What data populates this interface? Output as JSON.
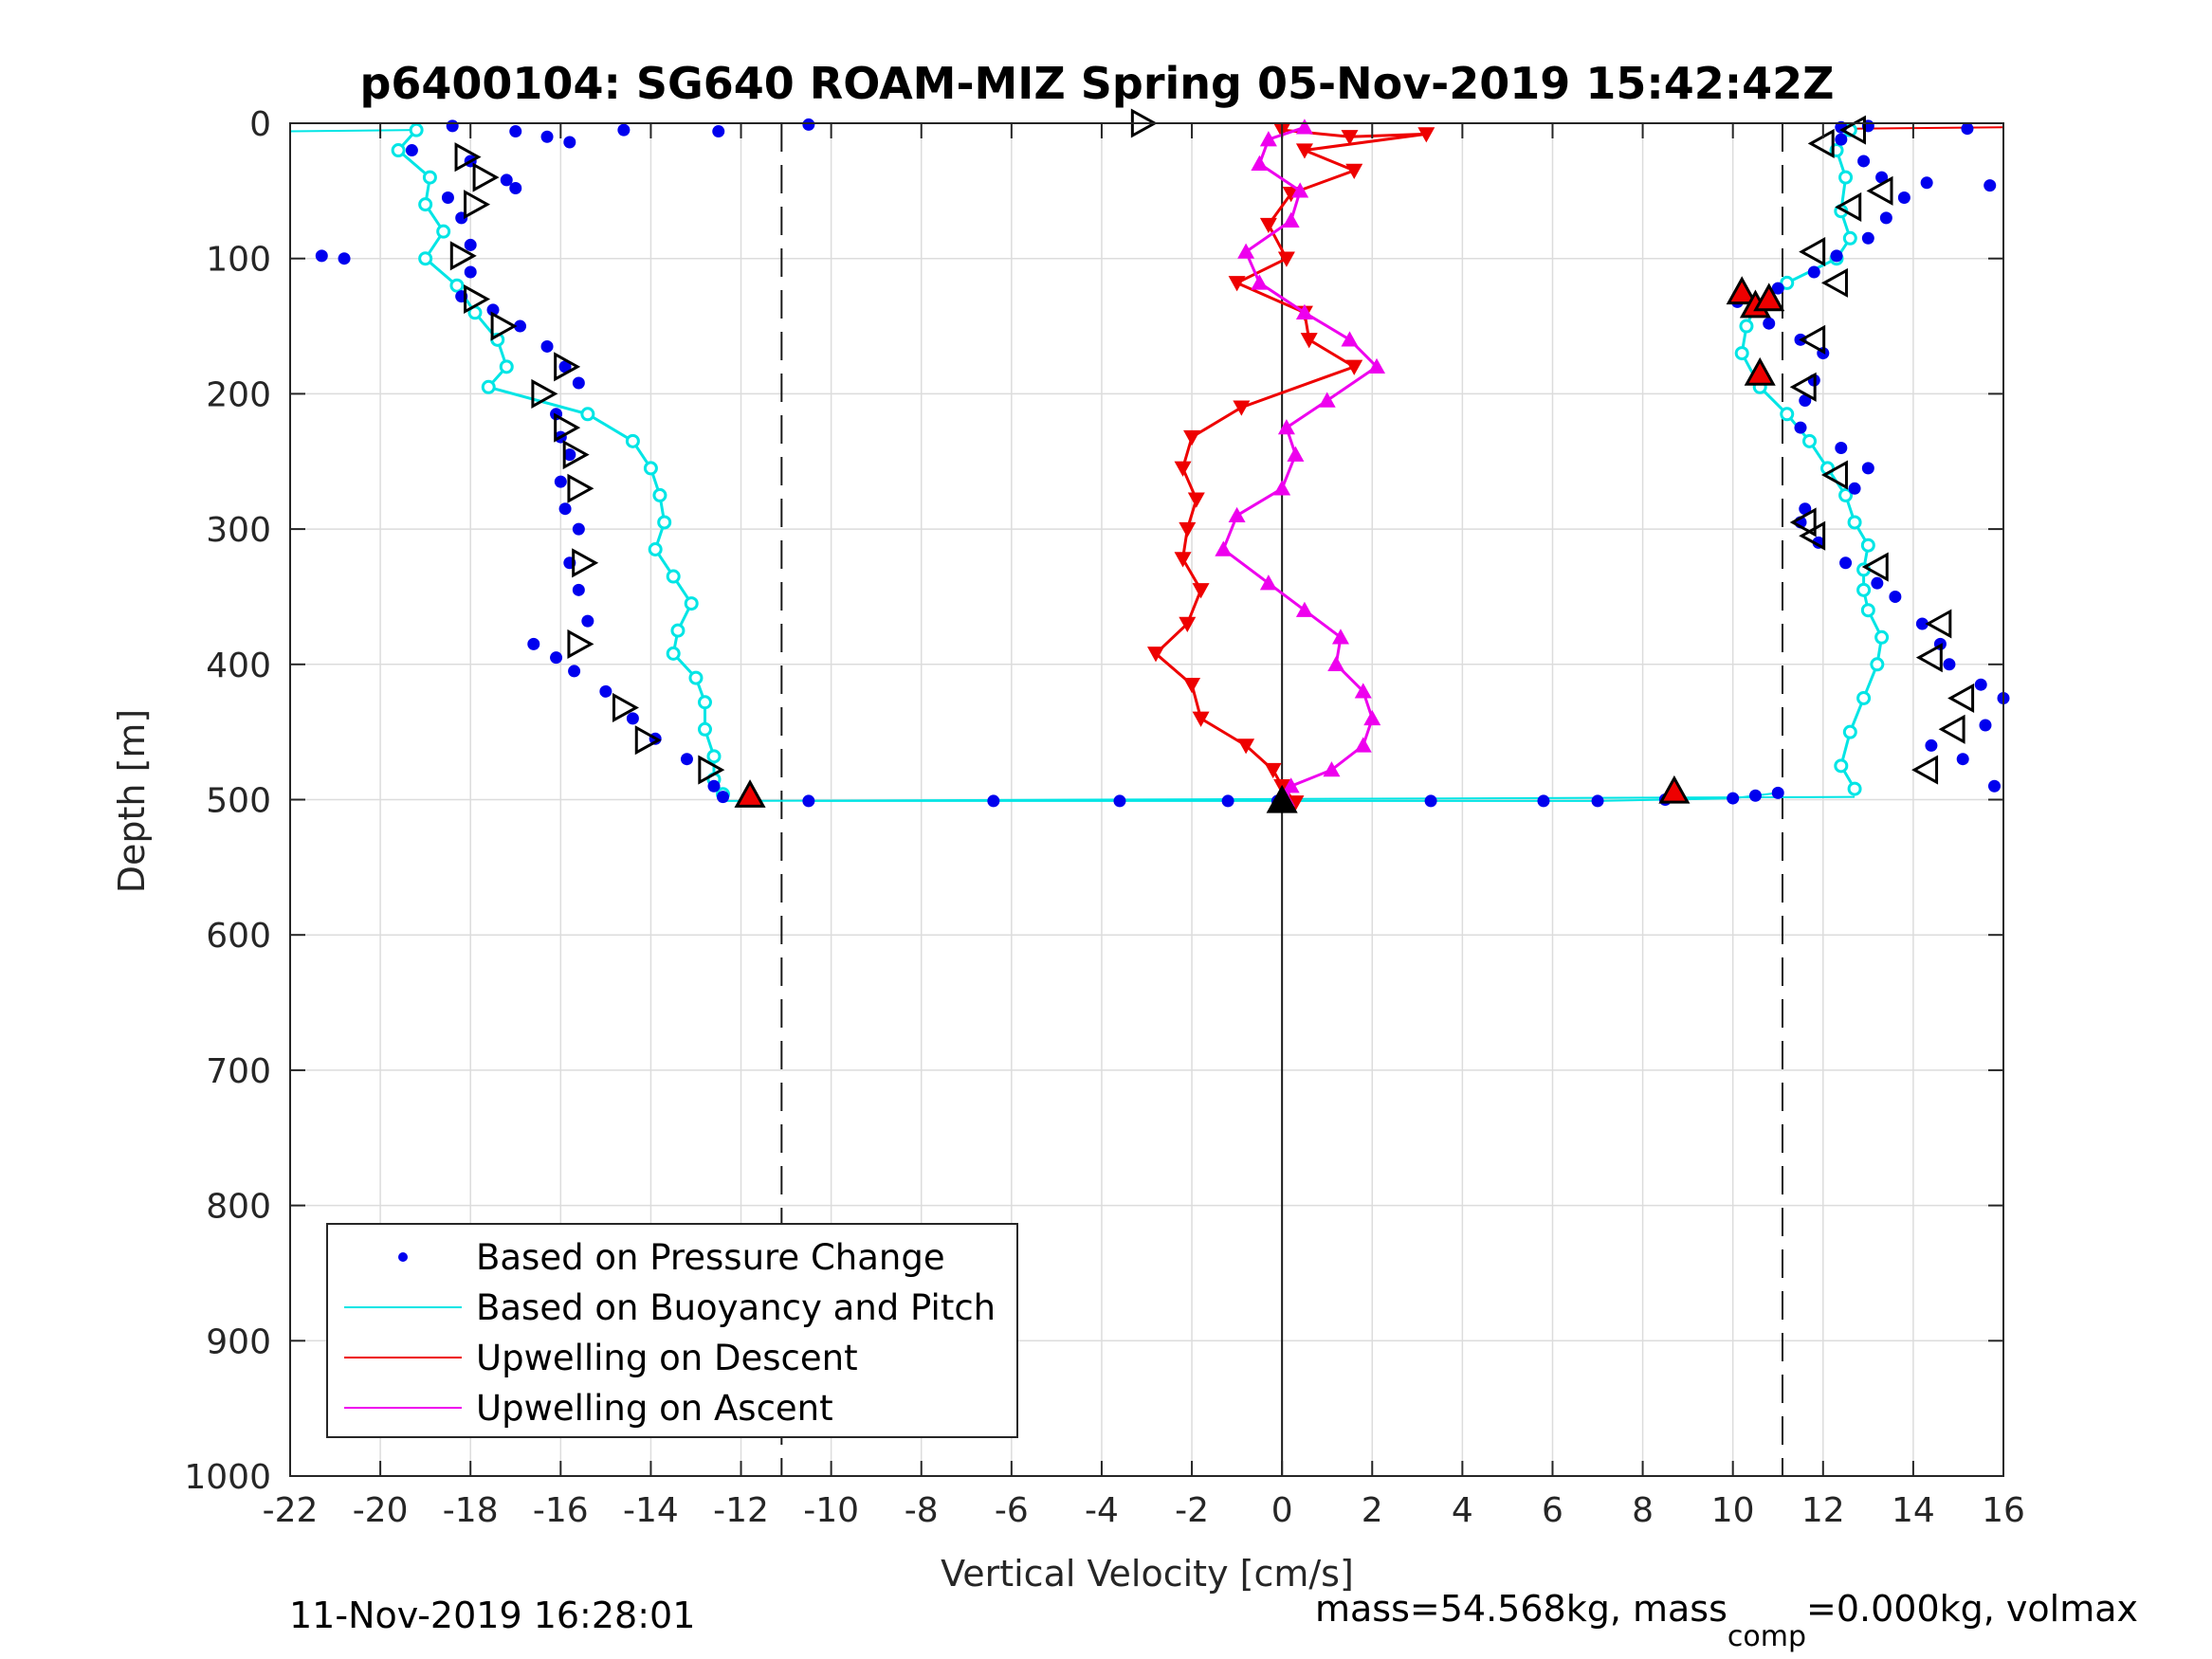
{
  "chart_data": {
    "type": "scatter",
    "title": "p6400104: SG640 ROAM-MIZ Spring 05-Nov-2019 15:42:42Z",
    "xlabel": "Vertical Velocity [cm/s]",
    "ylabel": "Depth [m]",
    "xlim": [
      -22,
      16
    ],
    "ylim": [
      1000,
      0
    ],
    "y_reversed": true,
    "grid": true,
    "legend_position": "bottom-left",
    "x_ticks": [
      "-22",
      "-20",
      "-18",
      "-16",
      "-14",
      "-12",
      "-10",
      "-8",
      "-6",
      "-4",
      "-2",
      "0",
      "2",
      "4",
      "6",
      "8",
      "10",
      "12",
      "14",
      "16"
    ],
    "y_ticks": [
      "0",
      "100",
      "200",
      "300",
      "400",
      "500",
      "600",
      "700",
      "800",
      "900",
      "1000"
    ],
    "reference_lines": [
      {
        "x": -11.1,
        "style": "dashed"
      },
      {
        "x": 0,
        "style": "solid"
      },
      {
        "x": 11.1,
        "style": "dashed"
      }
    ],
    "series": [
      {
        "name": "Based on Pressure Change",
        "color": "#0000ee",
        "marker": "dot",
        "descent": [
          [
            -18.4,
            2
          ],
          [
            -17.0,
            6
          ],
          [
            -16.3,
            10
          ],
          [
            -15.8,
            14
          ],
          [
            -14.6,
            5
          ],
          [
            -12.5,
            6
          ],
          [
            -10.5,
            1
          ],
          [
            -19.3,
            20
          ],
          [
            -18.0,
            28
          ],
          [
            -17.2,
            42
          ],
          [
            -17.0,
            48
          ],
          [
            -18.5,
            55
          ],
          [
            -18.2,
            70
          ],
          [
            -18.0,
            90
          ],
          [
            -21.3,
            98
          ],
          [
            -20.8,
            100
          ],
          [
            -18.0,
            110
          ],
          [
            -18.2,
            128
          ],
          [
            -17.5,
            138
          ],
          [
            -16.9,
            150
          ],
          [
            -16.3,
            165
          ],
          [
            -15.9,
            180
          ],
          [
            -15.6,
            192
          ],
          [
            -16.1,
            215
          ],
          [
            -16.0,
            232
          ],
          [
            -15.8,
            245
          ],
          [
            -16.0,
            265
          ],
          [
            -15.9,
            285
          ],
          [
            -15.6,
            300
          ],
          [
            -15.8,
            325
          ],
          [
            -15.6,
            345
          ],
          [
            -15.4,
            368
          ],
          [
            -16.6,
            385
          ],
          [
            -16.1,
            395
          ],
          [
            -15.7,
            405
          ],
          [
            -15.0,
            420
          ],
          [
            -14.4,
            440
          ],
          [
            -13.9,
            455
          ],
          [
            -13.2,
            470
          ],
          [
            -12.6,
            490
          ],
          [
            -12.4,
            498
          ]
        ],
        "bottom": [
          [
            -10.5,
            501
          ],
          [
            -6.4,
            501
          ],
          [
            -3.6,
            501
          ],
          [
            -1.2,
            501
          ],
          [
            -0.1,
            501
          ],
          [
            3.3,
            501
          ],
          [
            5.8,
            501
          ],
          [
            7.0,
            501
          ],
          [
            8.5,
            500
          ],
          [
            10.0,
            499
          ],
          [
            10.5,
            497
          ],
          [
            11.0,
            495
          ]
        ],
        "ascent": [
          [
            15.8,
            490
          ],
          [
            15.1,
            470
          ],
          [
            14.4,
            460
          ],
          [
            15.6,
            445
          ],
          [
            16.0,
            425
          ],
          [
            15.5,
            415
          ],
          [
            14.8,
            400
          ],
          [
            14.6,
            385
          ],
          [
            14.2,
            370
          ],
          [
            13.6,
            350
          ],
          [
            13.2,
            340
          ],
          [
            12.5,
            325
          ],
          [
            11.9,
            310
          ],
          [
            11.5,
            295
          ],
          [
            11.6,
            285
          ],
          [
            12.7,
            270
          ],
          [
            13.0,
            255
          ],
          [
            12.4,
            240
          ],
          [
            11.5,
            225
          ],
          [
            11.6,
            205
          ],
          [
            11.8,
            190
          ],
          [
            12.0,
            170
          ],
          [
            11.5,
            160
          ],
          [
            10.8,
            148
          ],
          [
            10.1,
            132
          ],
          [
            11.0,
            122
          ],
          [
            11.8,
            110
          ],
          [
            12.3,
            98
          ],
          [
            13.0,
            85
          ],
          [
            13.4,
            70
          ],
          [
            13.8,
            55
          ],
          [
            13.3,
            40
          ],
          [
            12.9,
            28
          ],
          [
            12.4,
            12
          ],
          [
            13.0,
            2
          ],
          [
            15.2,
            4
          ],
          [
            14.3,
            44
          ],
          [
            15.7,
            46
          ],
          [
            12.4,
            3
          ]
        ]
      },
      {
        "name": "Based on Buoyancy and Pitch",
        "color": "#00e5e5",
        "marker": "open-circle-line",
        "descent": [
          [
            -19.2,
            5
          ],
          [
            -19.6,
            20
          ],
          [
            -18.9,
            40
          ],
          [
            -19.0,
            60
          ],
          [
            -18.6,
            80
          ],
          [
            -19.0,
            100
          ],
          [
            -18.3,
            120
          ],
          [
            -17.9,
            140
          ],
          [
            -17.4,
            160
          ],
          [
            -17.2,
            180
          ],
          [
            -17.6,
            195
          ],
          [
            -15.4,
            215
          ],
          [
            -14.4,
            235
          ],
          [
            -14.0,
            255
          ],
          [
            -13.8,
            275
          ],
          [
            -13.7,
            295
          ],
          [
            -13.9,
            315
          ],
          [
            -13.5,
            335
          ],
          [
            -13.1,
            355
          ],
          [
            -13.4,
            375
          ],
          [
            -13.5,
            392
          ],
          [
            -13.0,
            410
          ],
          [
            -12.8,
            428
          ],
          [
            -12.8,
            448
          ],
          [
            -12.6,
            468
          ],
          [
            -12.6,
            485
          ],
          [
            -12.4,
            496
          ]
        ],
        "ascent": [
          [
            12.7,
            492
          ],
          [
            12.4,
            475
          ],
          [
            12.6,
            450
          ],
          [
            12.9,
            425
          ],
          [
            13.2,
            400
          ],
          [
            13.3,
            380
          ],
          [
            13.0,
            360
          ],
          [
            12.9,
            345
          ],
          [
            12.9,
            330
          ],
          [
            13.0,
            312
          ],
          [
            12.7,
            295
          ],
          [
            12.5,
            275
          ],
          [
            12.1,
            255
          ],
          [
            11.7,
            235
          ],
          [
            11.2,
            215
          ],
          [
            10.6,
            195
          ],
          [
            10.2,
            170
          ],
          [
            10.3,
            150
          ],
          [
            10.5,
            135
          ],
          [
            11.2,
            118
          ],
          [
            12.3,
            100
          ],
          [
            12.6,
            85
          ],
          [
            12.4,
            65
          ],
          [
            12.5,
            40
          ],
          [
            12.3,
            20
          ],
          [
            12.6,
            5
          ]
        ]
      },
      {
        "name": "Upwelling on Descent",
        "color": "#ee0000",
        "marker": "down-triangle",
        "points": [
          [
            0.0,
            5
          ],
          [
            1.5,
            10
          ],
          [
            3.2,
            8
          ],
          [
            0.5,
            20
          ],
          [
            1.6,
            35
          ],
          [
            0.2,
            52
          ],
          [
            -0.3,
            75
          ],
          [
            0.1,
            100
          ],
          [
            -1.0,
            118
          ],
          [
            0.5,
            140
          ],
          [
            0.6,
            160
          ],
          [
            1.6,
            180
          ],
          [
            -0.9,
            210
          ],
          [
            -2.0,
            232
          ],
          [
            -2.2,
            255
          ],
          [
            -1.9,
            278
          ],
          [
            -2.1,
            300
          ],
          [
            -2.2,
            322
          ],
          [
            -1.8,
            345
          ],
          [
            -2.1,
            370
          ],
          [
            -2.8,
            392
          ],
          [
            -2.0,
            415
          ],
          [
            -1.8,
            440
          ],
          [
            -0.8,
            460
          ],
          [
            -0.2,
            478
          ],
          [
            0.0,
            490
          ],
          [
            0.3,
            502
          ]
        ]
      },
      {
        "name": "Upwelling on Ascent",
        "color": "#ee00ee",
        "marker": "up-triangle",
        "points": [
          [
            0.1,
            500
          ],
          [
            0.2,
            490
          ],
          [
            1.1,
            478
          ],
          [
            1.8,
            460
          ],
          [
            2.0,
            440
          ],
          [
            1.8,
            420
          ],
          [
            1.2,
            400
          ],
          [
            1.3,
            380
          ],
          [
            0.5,
            360
          ],
          [
            -0.3,
            340
          ],
          [
            -1.3,
            315
          ],
          [
            -1.0,
            290
          ],
          [
            0.0,
            270
          ],
          [
            0.3,
            245
          ],
          [
            0.1,
            225
          ],
          [
            1.0,
            205
          ],
          [
            2.1,
            180
          ],
          [
            1.5,
            160
          ],
          [
            0.5,
            140
          ],
          [
            -0.5,
            118
          ],
          [
            -0.8,
            95
          ],
          [
            0.2,
            72
          ],
          [
            0.4,
            50
          ],
          [
            -0.5,
            30
          ],
          [
            -0.3,
            12
          ],
          [
            0.5,
            3
          ]
        ]
      }
    ],
    "glider_open_triangles": [
      [
        -18.1,
        25
      ],
      [
        -17.7,
        40
      ],
      [
        -17.9,
        60
      ],
      [
        -18.2,
        98
      ],
      [
        -17.9,
        130
      ],
      [
        -17.3,
        150
      ],
      [
        -15.9,
        180
      ],
      [
        -16.4,
        200
      ],
      [
        -15.9,
        225
      ],
      [
        -15.7,
        245
      ],
      [
        -15.6,
        270
      ],
      [
        -15.5,
        325
      ],
      [
        -15.6,
        385
      ],
      [
        -14.6,
        432
      ],
      [
        -14.1,
        456
      ],
      [
        -12.7,
        478
      ],
      [
        -3.1,
        0
      ],
      [
        12.7,
        5
      ],
      [
        12.0,
        15
      ],
      [
        13.3,
        50
      ],
      [
        12.6,
        62
      ],
      [
        11.8,
        95
      ],
      [
        12.3,
        118
      ],
      [
        11.8,
        160
      ],
      [
        11.6,
        195
      ],
      [
        12.3,
        260
      ],
      [
        11.6,
        295
      ],
      [
        11.8,
        305
      ],
      [
        13.2,
        328
      ],
      [
        14.6,
        370
      ],
      [
        14.4,
        395
      ],
      [
        15.1,
        425
      ],
      [
        14.9,
        448
      ],
      [
        14.3,
        478
      ]
    ],
    "flag_triangles": [
      [
        -11.8,
        497
      ],
      [
        8.7,
        494
      ],
      [
        10.2,
        125
      ],
      [
        10.5,
        135
      ],
      [
        10.6,
        185
      ],
      [
        10.8,
        130
      ],
      [
        0.0,
        501
      ]
    ],
    "footer": {
      "timestamp": "11-Nov-2019 16:28:01",
      "mass_text": "mass=54.568kg, mass",
      "mass_subscript": "comp",
      "mass_tail": "=0.000kg, volmax"
    }
  }
}
